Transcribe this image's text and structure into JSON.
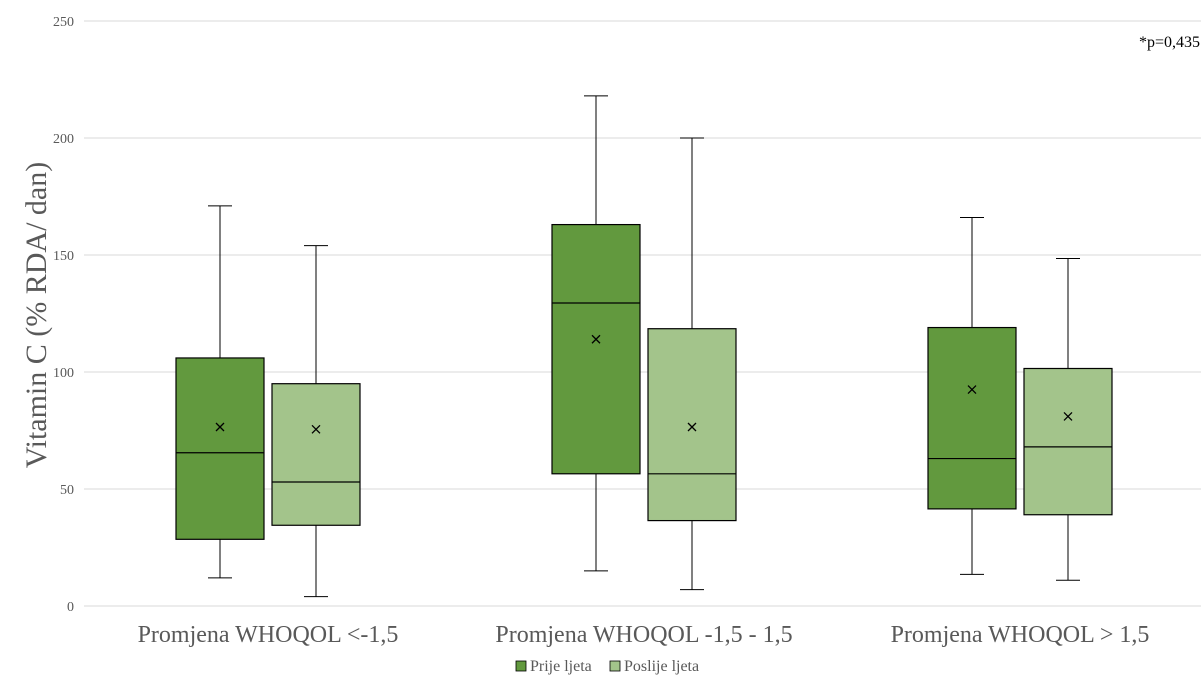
{
  "chart_data": {
    "type": "box",
    "ylabel": "Vitamin C (% RDA/ dan)",
    "xlabel": "",
    "ylim": [
      0,
      250
    ],
    "yticks": [
      0,
      50,
      100,
      150,
      200,
      250
    ],
    "grid": true,
    "annotation": "*p=0,435",
    "legend_position": "bottom",
    "categories": [
      "Promjena WHOQOL <-1,5",
      "Promjena WHOQOL -1,5 - 1,5",
      "Promjena WHOQOL > 1,5"
    ],
    "series": [
      {
        "name": "Prije ljeta",
        "color": "#62993e",
        "boxes": [
          {
            "min": 12,
            "q1": 28.5,
            "median": 65.5,
            "q3": 106,
            "max": 171,
            "mean": 76.5
          },
          {
            "min": 15,
            "q1": 56.5,
            "median": 129.5,
            "q3": 163,
            "max": 218,
            "mean": 114
          },
          {
            "min": 13.5,
            "q1": 41.5,
            "median": 63,
            "q3": 119,
            "max": 166,
            "mean": 92.5
          }
        ]
      },
      {
        "name": "Poslije ljeta",
        "color": "#a3c48b",
        "boxes": [
          {
            "min": 4,
            "q1": 34.5,
            "median": 53,
            "q3": 95,
            "max": 154,
            "mean": 75.5
          },
          {
            "min": 7,
            "q1": 36.5,
            "median": 56.5,
            "q3": 118.5,
            "max": 200,
            "mean": 76.5
          },
          {
            "min": 11,
            "q1": 39,
            "median": 68,
            "q3": 101.5,
            "max": 148.5,
            "mean": 81
          }
        ]
      }
    ]
  }
}
